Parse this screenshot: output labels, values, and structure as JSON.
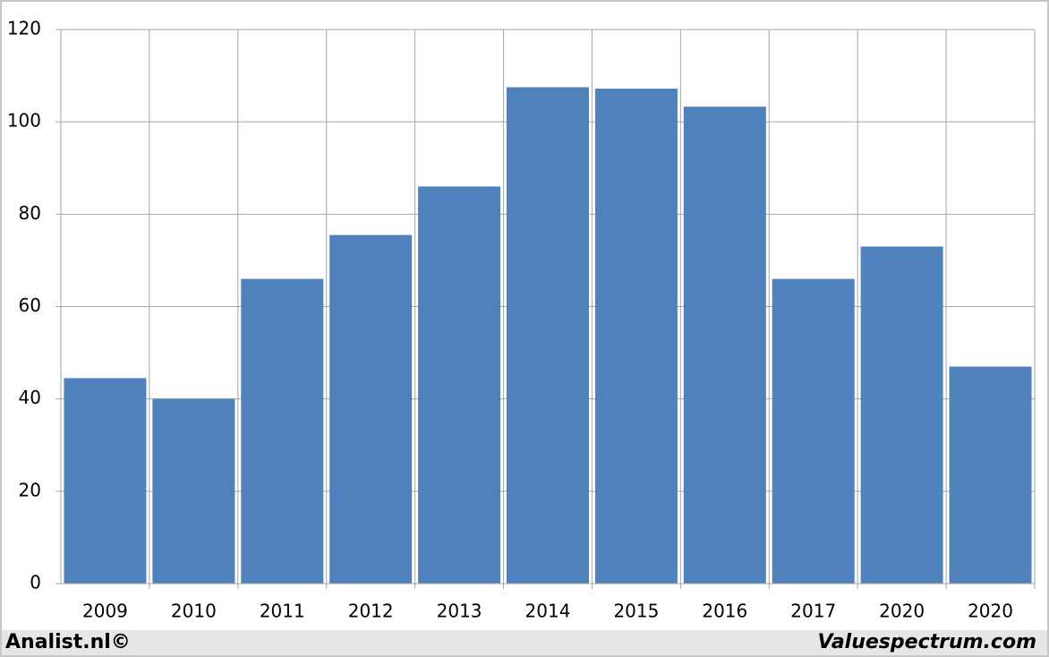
{
  "chart_data": {
    "type": "bar",
    "categories": [
      "2009",
      "2010",
      "2011",
      "2012",
      "2013",
      "2014",
      "2015",
      "2016",
      "2017",
      "2020",
      "2020"
    ],
    "values": [
      44.5,
      40,
      66,
      75.5,
      86,
      107.5,
      107.2,
      103.3,
      66,
      73,
      47
    ],
    "color": "#4f81bd",
    "ylim": [
      0,
      120
    ],
    "yticks": [
      0,
      20,
      40,
      60,
      80,
      100,
      120
    ],
    "grid": true
  },
  "footer": {
    "left": "Analist.nl©",
    "right": "Valuespectrum.com"
  }
}
